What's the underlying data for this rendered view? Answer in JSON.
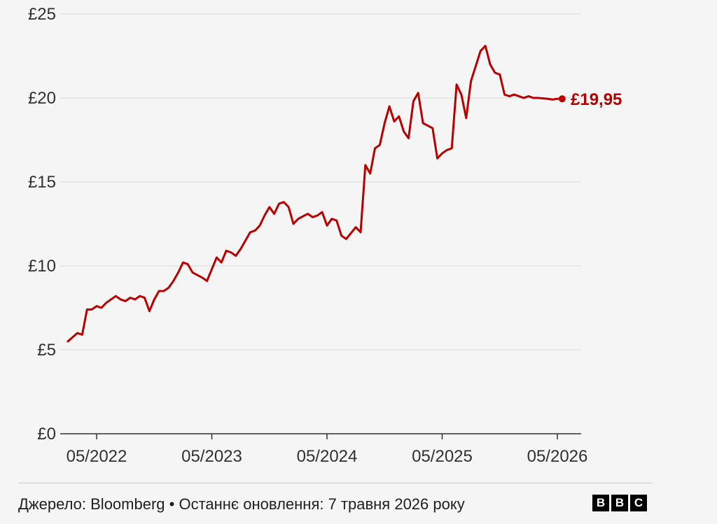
{
  "chart_data": {
    "type": "line",
    "x_tick_labels": [
      "05/2022",
      "05/2023",
      "05/2024",
      "05/2025",
      "05/2026"
    ],
    "y_tick_labels": [
      "£0",
      "£5",
      "£10",
      "£15",
      "£20",
      "£25"
    ],
    "y_ticks": [
      0,
      5,
      10,
      15,
      20,
      25
    ],
    "ylim": [
      0,
      25
    ],
    "x_range": [
      "2022-02",
      "2026-05"
    ],
    "grid": true,
    "line_color": "#b80000",
    "end_label": "£19,95",
    "series": [
      {
        "x": [
          "2022-02",
          "2022-03",
          "2022-03",
          "2022-04",
          "2022-04",
          "2022-05",
          "2022-05",
          "2022-06",
          "2022-07",
          "2022-07",
          "2022-08",
          "2022-08",
          "2022-09",
          "2022-09",
          "2022-10",
          "2022-10",
          "2022-11",
          "2022-11",
          "2022-12",
          "2022-12",
          "2023-01",
          "2023-01",
          "2023-02",
          "2023-02",
          "2023-03",
          "2023-04",
          "2023-04",
          "2023-05",
          "2023-05",
          "2023-06",
          "2023-06",
          "2023-07",
          "2023-07",
          "2023-08",
          "2023-09",
          "2023-09",
          "2023-10",
          "2023-10",
          "2023-11",
          "2023-11",
          "2023-12",
          "2023-12",
          "2024-01",
          "2024-01",
          "2024-02",
          "2024-03",
          "2024-03",
          "2024-04",
          "2024-04",
          "2024-05",
          "2024-05",
          "2024-06",
          "2024-06",
          "2024-07",
          "2024-08",
          "2024-08",
          "2024-09",
          "2024-09",
          "2024-10",
          "2024-10",
          "2024-11",
          "2024-11",
          "2024-12",
          "2024-12",
          "2025-01",
          "2025-01",
          "2025-02",
          "2025-02",
          "2025-03",
          "2025-04",
          "2025-04",
          "2025-05",
          "2025-05",
          "2025-06",
          "2025-06",
          "2025-07",
          "2025-07",
          "2025-08",
          "2025-09",
          "2025-09",
          "2025-10",
          "2025-10",
          "2025-11",
          "2025-11",
          "2025-12",
          "2025-12",
          "2026-01",
          "2026-01",
          "2026-02",
          "2026-02",
          "2026-03",
          "2026-04",
          "2026-04",
          "2026-05",
          "2026-05"
        ],
        "values": [
          5.5,
          6.0,
          5.9,
          7.4,
          7.4,
          7.6,
          7.5,
          7.8,
          8.2,
          8.0,
          7.9,
          8.1,
          8.0,
          8.2,
          8.1,
          7.3,
          8.0,
          8.5,
          8.5,
          8.7,
          9.1,
          9.6,
          10.2,
          10.1,
          9.6,
          9.3,
          9.1,
          9.8,
          10.5,
          10.2,
          10.9,
          10.8,
          10.6,
          11.0,
          12.0,
          12.1,
          12.4,
          13.0,
          13.5,
          13.1,
          13.7,
          13.8,
          13.5,
          12.5,
          12.8,
          13.1,
          12.9,
          13.0,
          13.2,
          12.4,
          12.8,
          12.7,
          11.8,
          11.6,
          12.3,
          12.0,
          16.0,
          15.5,
          17.0,
          17.2,
          18.5,
          19.5,
          18.6,
          18.9,
          18.0,
          17.6,
          19.8,
          20.3,
          18.5,
          18.2,
          16.4,
          16.7,
          16.9,
          17.0,
          20.8,
          20.2,
          18.8,
          21.0,
          22.8,
          23.1,
          22.0,
          21.5,
          21.4,
          20.2,
          20.1,
          20.2,
          20.1,
          20.0,
          20.1,
          20.0,
          20.0,
          19.95,
          19.9,
          19.95,
          19.95
        ]
      }
    ]
  },
  "footer": {
    "source_text": "Джерело: Bloomberg • Останнє оновлення: 7 травня 2026 року",
    "logo_letters": [
      "B",
      "B",
      "C"
    ]
  }
}
